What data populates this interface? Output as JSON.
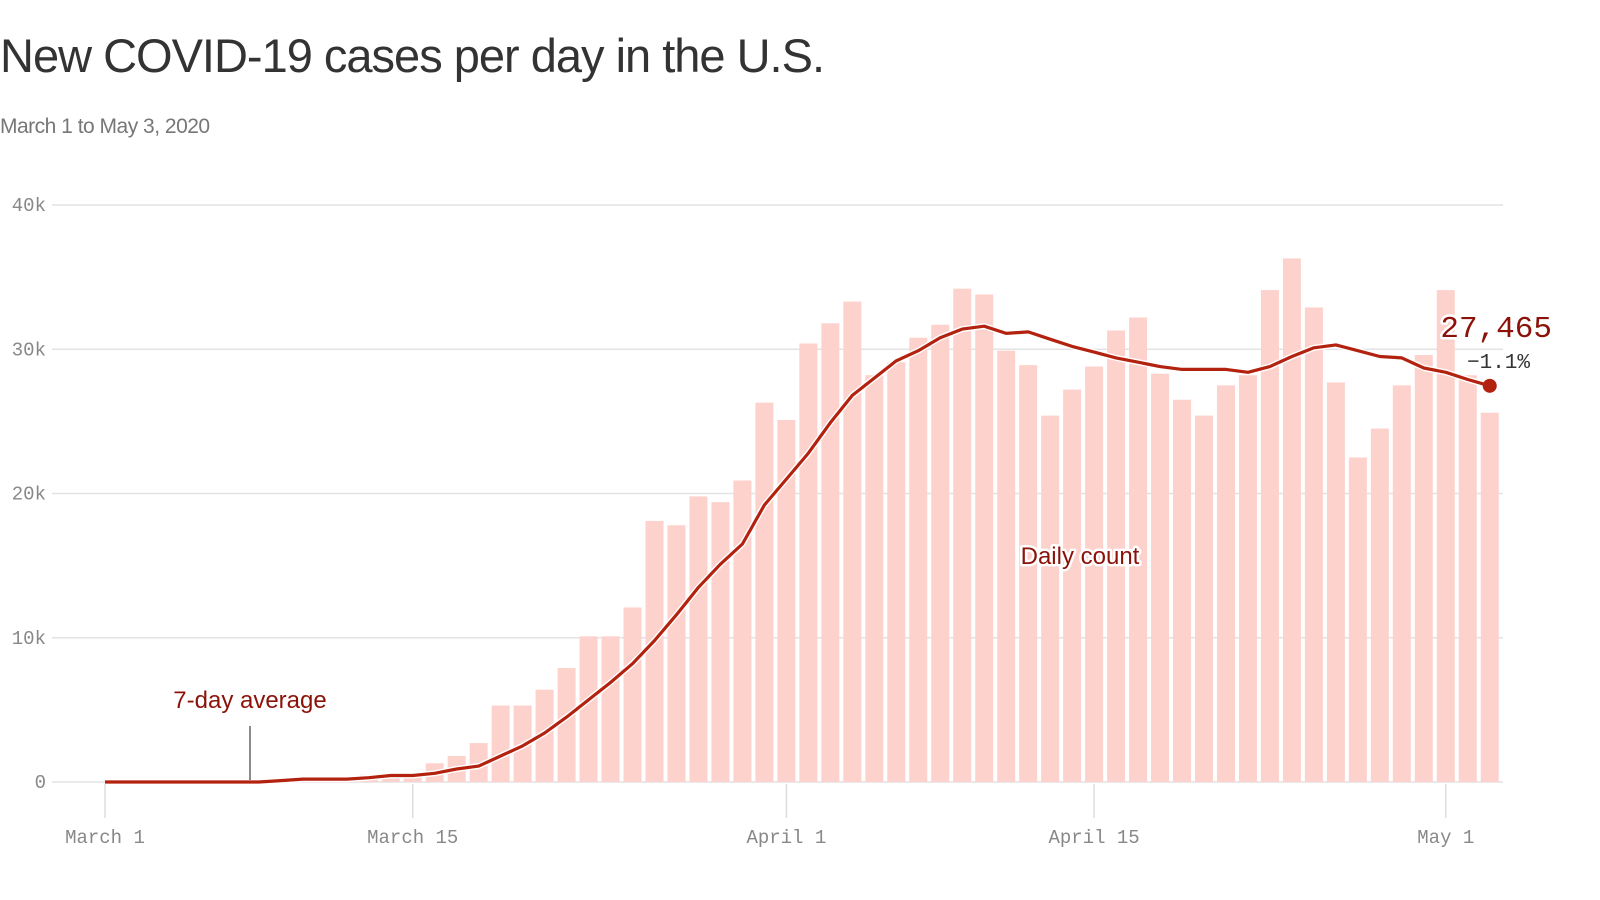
{
  "title": "New COVID-19 cases per day in the U.S.",
  "subtitle": "March 1 to May 3, 2020",
  "chart_data": {
    "type": "bar",
    "title": "New COVID-19 cases per day in the U.S.",
    "subtitle": "March 1 to May 3, 2020",
    "xlabel": "",
    "ylabel": "",
    "ylim": [
      0,
      40000
    ],
    "grid": true,
    "y_ticks": [
      0,
      10000,
      20000,
      30000,
      40000
    ],
    "y_tick_labels": [
      "0",
      "10k",
      "20k",
      "30k",
      "40k"
    ],
    "x_ticks": [
      "2020-03-01",
      "2020-03-15",
      "2020-04-01",
      "2020-04-15",
      "2020-05-01"
    ],
    "x_tick_labels": [
      "March 1",
      "March 15",
      "April 1",
      "April 15",
      "May 1"
    ],
    "colors": {
      "bars": "#fdd2cd",
      "line": "#b3220f",
      "label": "#8b1208"
    },
    "x": [
      "2020-03-01",
      "2020-03-02",
      "2020-03-03",
      "2020-03-04",
      "2020-03-05",
      "2020-03-06",
      "2020-03-07",
      "2020-03-08",
      "2020-03-09",
      "2020-03-10",
      "2020-03-11",
      "2020-03-12",
      "2020-03-13",
      "2020-03-14",
      "2020-03-15",
      "2020-03-16",
      "2020-03-17",
      "2020-03-18",
      "2020-03-19",
      "2020-03-20",
      "2020-03-21",
      "2020-03-22",
      "2020-03-23",
      "2020-03-24",
      "2020-03-25",
      "2020-03-26",
      "2020-03-27",
      "2020-03-28",
      "2020-03-29",
      "2020-03-30",
      "2020-03-31",
      "2020-04-01",
      "2020-04-02",
      "2020-04-03",
      "2020-04-04",
      "2020-04-05",
      "2020-04-06",
      "2020-04-07",
      "2020-04-08",
      "2020-04-09",
      "2020-04-10",
      "2020-04-11",
      "2020-04-12",
      "2020-04-13",
      "2020-04-14",
      "2020-04-15",
      "2020-04-16",
      "2020-04-17",
      "2020-04-18",
      "2020-04-19",
      "2020-04-20",
      "2020-04-21",
      "2020-04-22",
      "2020-04-23",
      "2020-04-24",
      "2020-04-25",
      "2020-04-26",
      "2020-04-27",
      "2020-04-28",
      "2020-04-29",
      "2020-04-30",
      "2020-05-01",
      "2020-05-02",
      "2020-05-03"
    ],
    "series": [
      {
        "name": "Daily count",
        "type": "bar",
        "values": [
          10,
          20,
          20,
          30,
          50,
          70,
          100,
          120,
          120,
          200,
          300,
          400,
          500,
          300,
          600,
          1300,
          1800,
          2700,
          5300,
          5300,
          6400,
          7900,
          10100,
          10100,
          12100,
          18100,
          17800,
          19800,
          19400,
          20900,
          26300,
          25100,
          30400,
          31800,
          33300,
          28200,
          29100,
          30800,
          31700,
          34200,
          33800,
          29900,
          28900,
          25400,
          27200,
          28800,
          31300,
          32200,
          28300,
          26500,
          25400,
          27500,
          28200,
          34100,
          36300,
          32900,
          27700,
          22500,
          24500,
          27500,
          29600,
          34100,
          28200,
          25600
        ]
      },
      {
        "name": "7-day average",
        "type": "line",
        "values": [
          0,
          0,
          0,
          0,
          0,
          0,
          0,
          0,
          100,
          200,
          200,
          200,
          300,
          450,
          450,
          600,
          900,
          1100,
          1800,
          2500,
          3400,
          4500,
          5700,
          6900,
          8200,
          9800,
          11600,
          13500,
          15100,
          16500,
          19200,
          21000,
          22800,
          24900,
          26800,
          28000,
          29200,
          29900,
          30800,
          31400,
          31600,
          31100,
          31200,
          30700,
          30200,
          29800,
          29400,
          29100,
          28800,
          28600,
          28600,
          28600,
          28400,
          28800,
          29500,
          30100,
          30300,
          29900,
          29500,
          29400,
          28700,
          28400,
          27900,
          27465
        ]
      }
    ],
    "annotations": {
      "latest_value": "27,465",
      "latest_change": "−1.1%",
      "line_label": "7-day average",
      "bar_label": "Daily count"
    }
  }
}
